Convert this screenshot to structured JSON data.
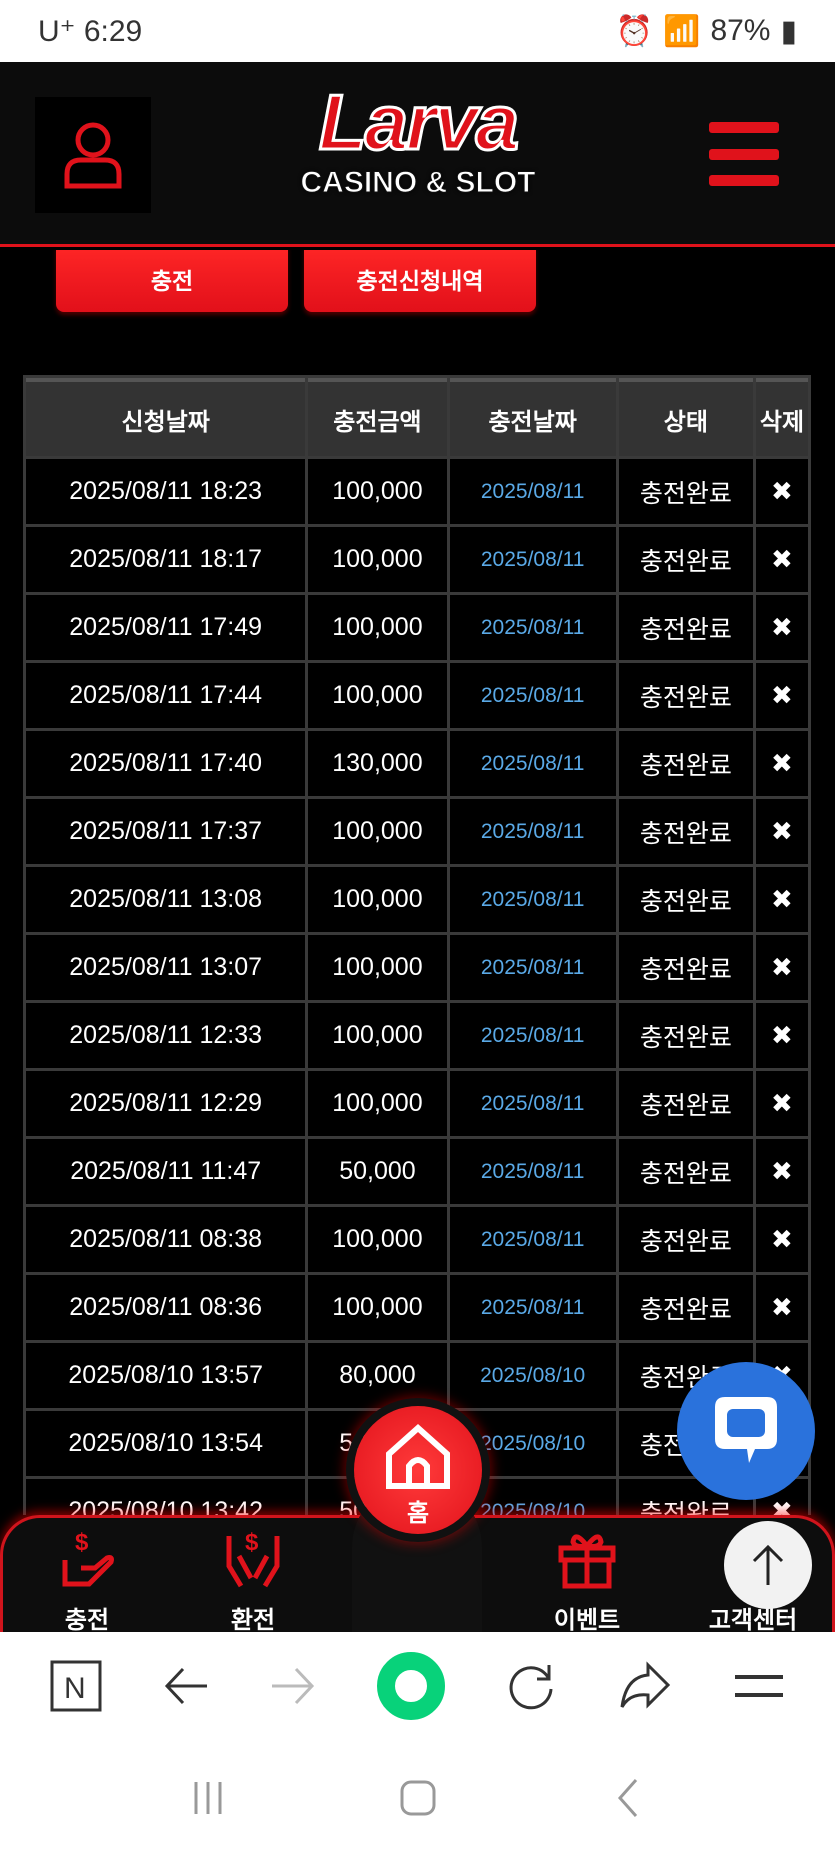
{
  "status_bar": {
    "carrier": "U⁺",
    "time": "6:29",
    "battery": "87%"
  },
  "header": {
    "logo_main": "Larva",
    "logo_sub": "CASINO & SLOT"
  },
  "tabs": {
    "charge": "충전",
    "history": "충전신청내역"
  },
  "table": {
    "headers": [
      "신청날짜",
      "충전금액",
      "충전날짜",
      "상태",
      "삭제"
    ],
    "rows": [
      [
        "2025/08/11 18:23",
        "100,000",
        "2025/08/11",
        "충전완료",
        "✖"
      ],
      [
        "2025/08/11 18:17",
        "100,000",
        "2025/08/11",
        "충전완료",
        "✖"
      ],
      [
        "2025/08/11 17:49",
        "100,000",
        "2025/08/11",
        "충전완료",
        "✖"
      ],
      [
        "2025/08/11 17:44",
        "100,000",
        "2025/08/11",
        "충전완료",
        "✖"
      ],
      [
        "2025/08/11 17:40",
        "130,000",
        "2025/08/11",
        "충전완료",
        "✖"
      ],
      [
        "2025/08/11 17:37",
        "100,000",
        "2025/08/11",
        "충전완료",
        "✖"
      ],
      [
        "2025/08/11 13:08",
        "100,000",
        "2025/08/11",
        "충전완료",
        "✖"
      ],
      [
        "2025/08/11 13:07",
        "100,000",
        "2025/08/11",
        "충전완료",
        "✖"
      ],
      [
        "2025/08/11 12:33",
        "100,000",
        "2025/08/11",
        "충전완료",
        "✖"
      ],
      [
        "2025/08/11 12:29",
        "100,000",
        "2025/08/11",
        "충전완료",
        "✖"
      ],
      [
        "2025/08/11 11:47",
        "50,000",
        "2025/08/11",
        "충전완료",
        "✖"
      ],
      [
        "2025/08/11 08:38",
        "100,000",
        "2025/08/11",
        "충전완료",
        "✖"
      ],
      [
        "2025/08/11 08:36",
        "100,000",
        "2025/08/11",
        "충전완료",
        "✖"
      ],
      [
        "2025/08/10 13:57",
        "80,000",
        "2025/08/10",
        "충전완료",
        "✖"
      ],
      [
        "2025/08/10 13:54",
        "50,000",
        "2025/08/10",
        "충전완료",
        "✖"
      ],
      [
        "2025/08/10 13:42",
        "50,000",
        "2025/08/10",
        "충전완료",
        "✖"
      ]
    ]
  },
  "bottom_nav": {
    "charge": "충전",
    "exchange": "환전",
    "home": "홈",
    "event": "이벤트",
    "support": "고객센터"
  },
  "colors": {
    "accent": "#e0121b",
    "link": "#5aa9e6",
    "chat": "#2a72dc"
  }
}
